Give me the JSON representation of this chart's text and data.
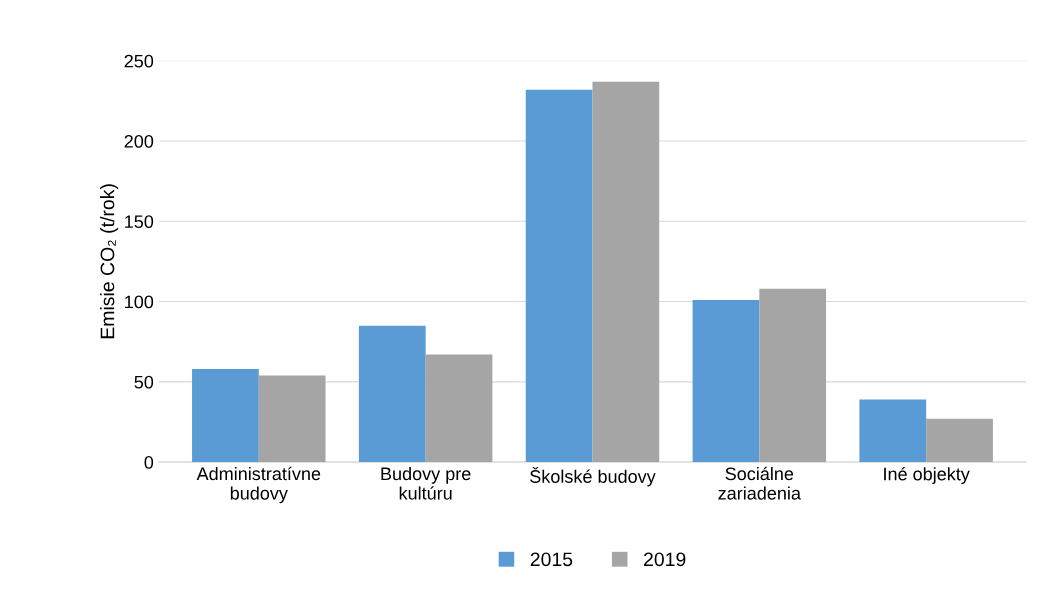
{
  "chart_data": {
    "type": "bar",
    "ylabel": "Emisie CO₂ (t/rok)",
    "categories": [
      "Administratívne\nbudovy",
      "Budovy pre\nkultúru",
      "Školské budovy",
      "Sociálne\nzariadenia",
      "Iné objekty"
    ],
    "series": [
      {
        "name": "2015",
        "color": "#5b9bd5",
        "values": [
          58,
          85,
          232,
          101,
          39
        ]
      },
      {
        "name": "2019",
        "color": "#a5a5a5",
        "values": [
          54,
          67,
          237,
          108,
          27
        ]
      }
    ],
    "ylim": [
      0,
      250
    ],
    "yticks": [
      0,
      50,
      100,
      150,
      200,
      250
    ],
    "grid": "y",
    "legend": "bottom"
  }
}
